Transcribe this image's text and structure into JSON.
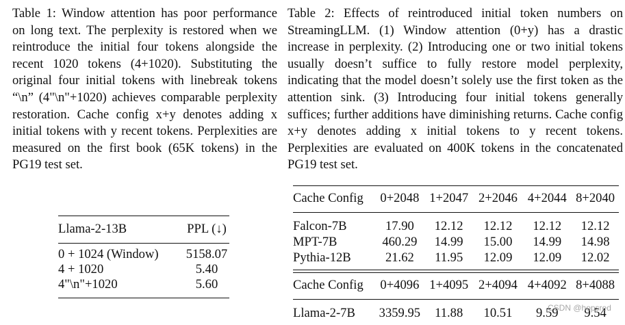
{
  "table1": {
    "caption_label": "Table 1:",
    "caption_text": "Window attention has poor performance on long text. The perplexity is restored when we reintroduce the initial four tokens alongside the recent 1020 tokens (4+1020). Substituting the original four initial tokens with linebreak tokens “\\n” (4\"\\n\"+1020) achieves comparable perplexity restoration. Cache config x+y denotes adding x initial tokens with y recent tokens. Perplexities are measured on the first book (65K tokens) in the PG19 test set.",
    "header": {
      "model": "Llama-2-13B",
      "metric": "PPL (↓)"
    },
    "rows": [
      {
        "config": "0 + 1024 (Window)",
        "ppl": "5158.07"
      },
      {
        "config": "4 + 1020",
        "ppl": "5.40"
      },
      {
        "config": "4\"\\n\"+1020",
        "ppl": "5.60"
      }
    ]
  },
  "table2": {
    "caption_label": "Table 2:",
    "caption_text": "Effects of reintroduced initial token numbers on StreamingLLM. (1) Window attention (0+y) has a drastic increase in perplexity. (2) Introducing one or two initial tokens usually doesn’t suffice to fully restore model perplexity, indicating that the model doesn’t solely use the first token as the attention sink. (3) Introducing four initial tokens generally suffices; further additions have diminishing returns. Cache config x+y denotes adding x initial tokens to y recent tokens. Perplexities are evaluated on 400K tokens in the concatenated PG19 test set.",
    "block1": {
      "header_label": "Cache Config",
      "configs": [
        "0+2048",
        "1+2047",
        "2+2046",
        "4+2044",
        "8+2040"
      ],
      "rows": [
        {
          "model": "Falcon-7B",
          "values": [
            "17.90",
            "12.12",
            "12.12",
            "12.12",
            "12.12"
          ]
        },
        {
          "model": "MPT-7B",
          "values": [
            "460.29",
            "14.99",
            "15.00",
            "14.99",
            "14.98"
          ]
        },
        {
          "model": "Pythia-12B",
          "values": [
            "21.62",
            "11.95",
            "12.09",
            "12.09",
            "12.02"
          ]
        }
      ]
    },
    "block2": {
      "header_label": "Cache Config",
      "configs": [
        "0+4096",
        "1+4095",
        "2+4094",
        "4+4092",
        "8+4088"
      ],
      "rows": [
        {
          "model": "Llama-2-7B",
          "values": [
            "3359.95",
            "11.88",
            "10.51",
            "9.59",
            "9.54"
          ]
        }
      ]
    }
  },
  "watermark": "CSDN @hopsred"
}
